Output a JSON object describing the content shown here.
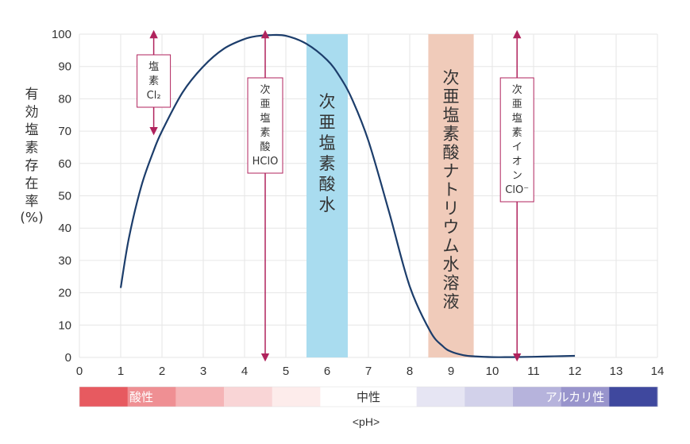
{
  "chart_data": {
    "type": "line",
    "x": [
      1.0,
      1.2,
      1.5,
      1.8,
      2.0,
      2.5,
      3.0,
      3.5,
      4.0,
      4.3,
      4.6,
      5.0,
      5.5,
      6.0,
      6.3,
      6.6,
      7.0,
      7.5,
      8.0,
      8.5,
      8.8,
      9.0,
      9.3,
      9.6,
      10.0,
      10.5,
      11.0,
      11.5,
      12.0
    ],
    "y": [
      21.5,
      37,
      53,
      64,
      70,
      82,
      90,
      95.5,
      98.5,
      99.4,
      99.7,
      99.5,
      97,
      92,
      87,
      80,
      67,
      45,
      22,
      8,
      3.5,
      1.8,
      0.7,
      0.3,
      0.1,
      0.1,
      0.2,
      0.35,
      0.5
    ],
    "xlim": [
      0,
      14
    ],
    "ylim": [
      0,
      100
    ],
    "xticks": [
      "0",
      "1",
      "2",
      "3",
      "4",
      "5",
      "6",
      "7",
      "8",
      "9",
      "10",
      "11",
      "12",
      "13",
      "14"
    ],
    "yticks": [
      "0",
      "10",
      "20",
      "30",
      "40",
      "50",
      "60",
      "70",
      "80",
      "90",
      "100"
    ],
    "xlabel": "<pH>",
    "ylabel_chars": [
      "有",
      "効",
      "塩",
      "素",
      "存",
      "在",
      "率"
    ],
    "ylabel_unit": "(%)",
    "grid": true,
    "line_color": "#1c3d6b",
    "arrow_color": "#b0235d",
    "regions": [
      {
        "label_chars": [
          "次",
          "亜",
          "塩",
          "素",
          "酸",
          "水"
        ],
        "from": 5.5,
        "to": 6.5,
        "color": "#a9dcef"
      },
      {
        "label_chars": [
          "次",
          "亜",
          "塩",
          "素",
          "酸",
          "ナ",
          "ト",
          "リ",
          "ウ",
          "ム",
          "水",
          "溶",
          "液"
        ],
        "from": 8.45,
        "to": 9.55,
        "color": "#f0cbba"
      }
    ],
    "annotations": [
      {
        "label_lines": [
          "塩",
          "素",
          "Cl₂"
        ],
        "x": 1.8,
        "y_top": 100,
        "y_bottom": 70
      },
      {
        "label_lines": [
          "次",
          "亜",
          "塩",
          "素",
          "酸",
          "HClO"
        ],
        "x": 4.5,
        "y_top": 100,
        "y_bottom": 0
      },
      {
        "label_lines": [
          "次",
          "亜",
          "塩",
          "素",
          "イ",
          "オ",
          "ン",
          "ClO⁻"
        ],
        "x": 10.6,
        "y_top": 100,
        "y_bottom": 0
      }
    ],
    "ph_scale": {
      "segments": [
        "#e75a60",
        "#ef8f93",
        "#f5b4b6",
        "#f9d5d6",
        "#fdeceb",
        "#ffffff",
        "#ffffff",
        "#e6e5f3",
        "#d2d1ea",
        "#b6b3dc",
        "#9894cc",
        "#3f489e"
      ],
      "labels": [
        {
          "text": "酸性",
          "at": 1.5,
          "color": "#ffffff"
        },
        {
          "text": "中性",
          "at": 7.0,
          "color": "#333333"
        },
        {
          "text": "アルカリ性",
          "at": 12.0,
          "color": "#ffffff"
        }
      ]
    }
  }
}
